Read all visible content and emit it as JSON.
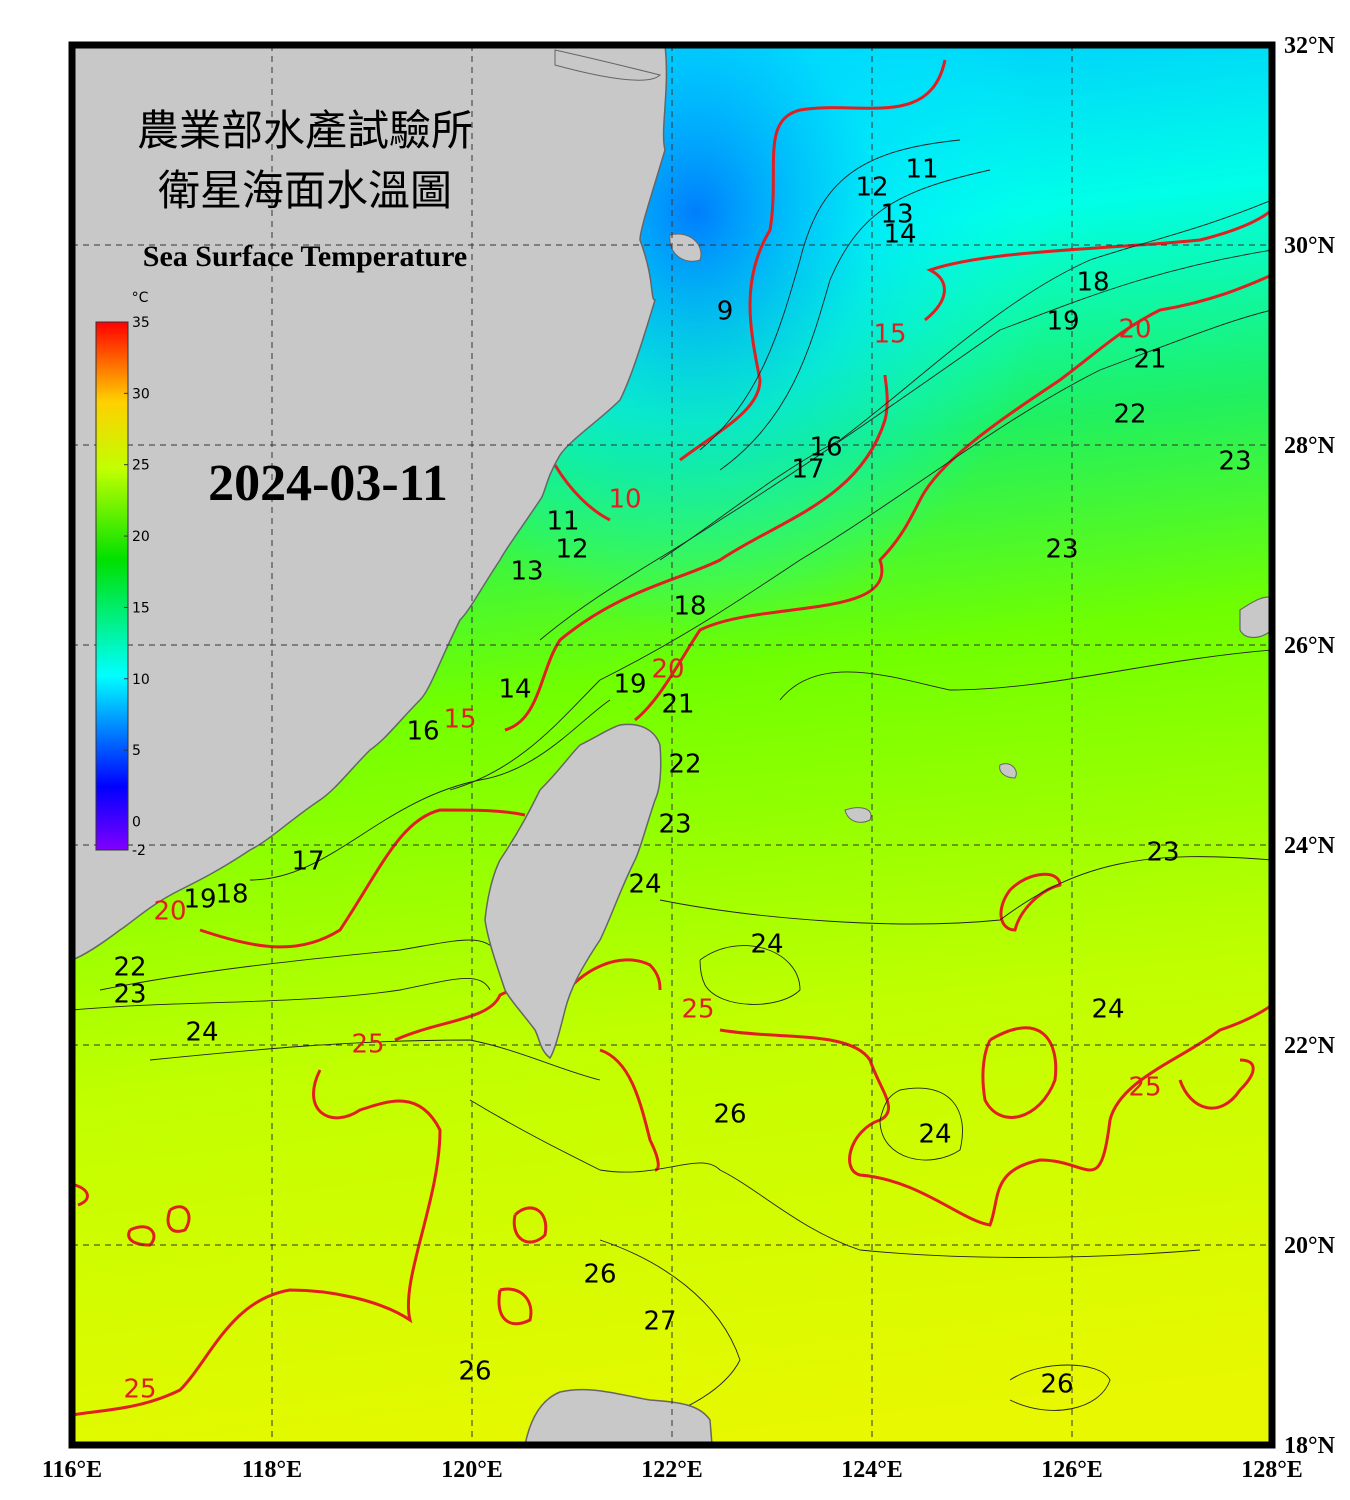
{
  "header": {
    "title_zh": "農業部水產試驗所",
    "subtitle_zh": "衛星海面水溫圖",
    "title_en": "Sea Surface Temperature",
    "date": "2024-03-11"
  },
  "map": {
    "xlim": [
      116,
      128
    ],
    "ylim": [
      18,
      32
    ],
    "xticks": [
      {
        "value": 116,
        "label": "116°E"
      },
      {
        "value": 118,
        "label": "118°E"
      },
      {
        "value": 120,
        "label": "120°E"
      },
      {
        "value": 122,
        "label": "122°E"
      },
      {
        "value": 124,
        "label": "124°E"
      },
      {
        "value": 126,
        "label": "126°E"
      },
      {
        "value": 128,
        "label": "128°E"
      }
    ],
    "yticks": [
      {
        "value": 18,
        "label": "18°N"
      },
      {
        "value": 20,
        "label": "20°N"
      },
      {
        "value": 22,
        "label": "22°N"
      },
      {
        "value": 24,
        "label": "24°N"
      },
      {
        "value": 26,
        "label": "26°N"
      },
      {
        "value": 28,
        "label": "28°N"
      },
      {
        "value": 30,
        "label": "30°N"
      },
      {
        "value": 32,
        "label": "32°N"
      }
    ],
    "contour_labels": [
      11,
      12,
      13,
      14,
      9,
      15,
      10,
      11,
      12,
      13,
      16,
      17,
      18,
      18,
      19,
      20,
      21,
      22,
      23,
      23,
      19,
      20,
      21,
      22,
      23,
      24,
      14,
      15,
      16,
      17,
      18,
      19,
      20,
      22,
      23,
      24,
      25,
      25,
      24,
      24,
      23,
      26,
      24,
      25,
      26,
      27,
      26,
      25,
      26
    ]
  },
  "colorbar": {
    "unit": "°C",
    "range": [
      -2,
      35
    ],
    "ticks": [
      -2,
      0,
      5,
      10,
      15,
      20,
      25,
      30,
      35
    ]
  }
}
